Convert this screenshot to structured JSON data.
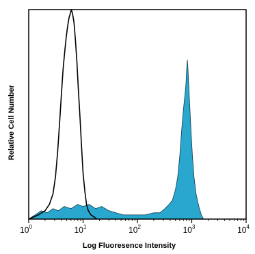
{
  "chart_data": {
    "type": "area",
    "title": "",
    "xlabel": "Log Fluoresence Intensity",
    "ylabel": "Relative Cell Number",
    "x_scale": "log",
    "xlim": [
      1,
      10000
    ],
    "ylim": [
      0,
      100
    ],
    "grid": false,
    "legend": "none",
    "x_ticks": [
      {
        "base": "10",
        "exp": "0",
        "value": 1
      },
      {
        "base": "10",
        "exp": "1",
        "value": 10
      },
      {
        "base": "10",
        "exp": "2",
        "value": 100
      },
      {
        "base": "10",
        "exp": "3",
        "value": 1000
      },
      {
        "base": "10",
        "exp": "4",
        "value": 10000
      }
    ],
    "series": [
      {
        "style": "filled",
        "color": "#2aa7cf",
        "points": [
          [
            1.0,
            0
          ],
          [
            1.3,
            2
          ],
          [
            1.7,
            4
          ],
          [
            2.2,
            3
          ],
          [
            2.8,
            5
          ],
          [
            3.5,
            4
          ],
          [
            4.5,
            6
          ],
          [
            6,
            5
          ],
          [
            8,
            7
          ],
          [
            10,
            6
          ],
          [
            13,
            7
          ],
          [
            17,
            5
          ],
          [
            22,
            6
          ],
          [
            30,
            4
          ],
          [
            40,
            3
          ],
          [
            55,
            2
          ],
          [
            75,
            2
          ],
          [
            100,
            2
          ],
          [
            140,
            2
          ],
          [
            200,
            3
          ],
          [
            260,
            3
          ],
          [
            320,
            5
          ],
          [
            380,
            7
          ],
          [
            440,
            9
          ],
          [
            500,
            14
          ],
          [
            550,
            20
          ],
          [
            600,
            30
          ],
          [
            650,
            42
          ],
          [
            700,
            52
          ],
          [
            740,
            58
          ],
          [
            780,
            64
          ],
          [
            810,
            72
          ],
          [
            830,
            76
          ],
          [
            850,
            72
          ],
          [
            880,
            64
          ],
          [
            920,
            54
          ],
          [
            970,
            42
          ],
          [
            1030,
            30
          ],
          [
            1100,
            20
          ],
          [
            1200,
            12
          ],
          [
            1350,
            6
          ],
          [
            1500,
            2
          ],
          [
            1650,
            0
          ]
        ]
      },
      {
        "style": "line",
        "color": "#000000",
        "points": [
          [
            1.0,
            0
          ],
          [
            1.5,
            2
          ],
          [
            2.0,
            4
          ],
          [
            2.4,
            7
          ],
          [
            2.8,
            12
          ],
          [
            3.1,
            20
          ],
          [
            3.4,
            32
          ],
          [
            3.7,
            46
          ],
          [
            4.0,
            60
          ],
          [
            4.3,
            72
          ],
          [
            4.6,
            80
          ],
          [
            4.9,
            87
          ],
          [
            5.2,
            92
          ],
          [
            5.5,
            96
          ],
          [
            5.8,
            98
          ],
          [
            6.1,
            100
          ],
          [
            6.4,
            98
          ],
          [
            6.8,
            94
          ],
          [
            7.2,
            86
          ],
          [
            7.7,
            75
          ],
          [
            8.2,
            62
          ],
          [
            8.8,
            48
          ],
          [
            9.4,
            34
          ],
          [
            10,
            22
          ],
          [
            10.8,
            13
          ],
          [
            11.6,
            7
          ],
          [
            12.5,
            4
          ],
          [
            14,
            2
          ],
          [
            16,
            1
          ],
          [
            18,
            0
          ]
        ]
      }
    ]
  }
}
